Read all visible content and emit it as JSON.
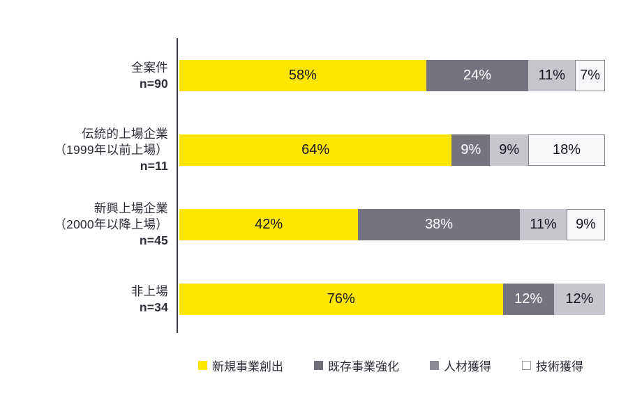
{
  "figure": {
    "background": "#ffffff",
    "axis_color": "#3a3a44"
  },
  "chart_data": {
    "type": "bar",
    "orientation": "horizontal-stacked",
    "value_format": "percent",
    "xlim": [
      0,
      100
    ],
    "grid": false,
    "legend_position": "bottom",
    "categories": [
      "全案件 n=90",
      "伝統的上場企業（1999年以前上場） n=11",
      "新興上場企業（2000年以降上場） n=45",
      "非上場 n=34"
    ],
    "rows": [
      {
        "label_lines": [
          "全案件",
          "n=90"
        ],
        "values": [
          58,
          24,
          11,
          7
        ]
      },
      {
        "label_lines": [
          "伝統的上場企業",
          "（1999年以前上場）",
          "n=11"
        ],
        "values": [
          64,
          9,
          9,
          18
        ]
      },
      {
        "label_lines": [
          "新興上場企業",
          "（2000年以降上場）",
          "n=45"
        ],
        "values": [
          42,
          38,
          11,
          9
        ]
      },
      {
        "label_lines": [
          "非上場",
          "n=34"
        ],
        "values": [
          76,
          12,
          12,
          0
        ]
      }
    ],
    "series": [
      {
        "name": "新規事業創出",
        "color": "#ffe600",
        "text_color": "#16161e",
        "border": "none",
        "values": [
          58,
          64,
          42,
          76
        ]
      },
      {
        "name": "既存事業強化",
        "color": "#747480",
        "text_color": "#ffffff",
        "border": "none",
        "values": [
          24,
          9,
          38,
          12
        ]
      },
      {
        "name": "人材獲得",
        "color": "#c6c6cd",
        "text_color": "#16161e",
        "border": "none",
        "values": [
          11,
          9,
          11,
          12
        ]
      },
      {
        "name": "技術獲得",
        "color": "#f7f7f9",
        "text_color": "#16161e",
        "border": "1px solid #85858f",
        "values": [
          7,
          18,
          9,
          0
        ]
      }
    ]
  },
  "legend": {
    "items": [
      {
        "label": "新規事業創出",
        "swatch": "#ffe600",
        "swatch_border": "none"
      },
      {
        "label": "既存事業強化",
        "swatch": "#6e6e78",
        "swatch_border": "none"
      },
      {
        "label": "人材獲得",
        "swatch": "#8a8a94",
        "swatch_border": "none"
      },
      {
        "label": "技術獲得",
        "swatch": "#ffffff",
        "swatch_border": "1px solid #9a9aa2"
      }
    ]
  }
}
